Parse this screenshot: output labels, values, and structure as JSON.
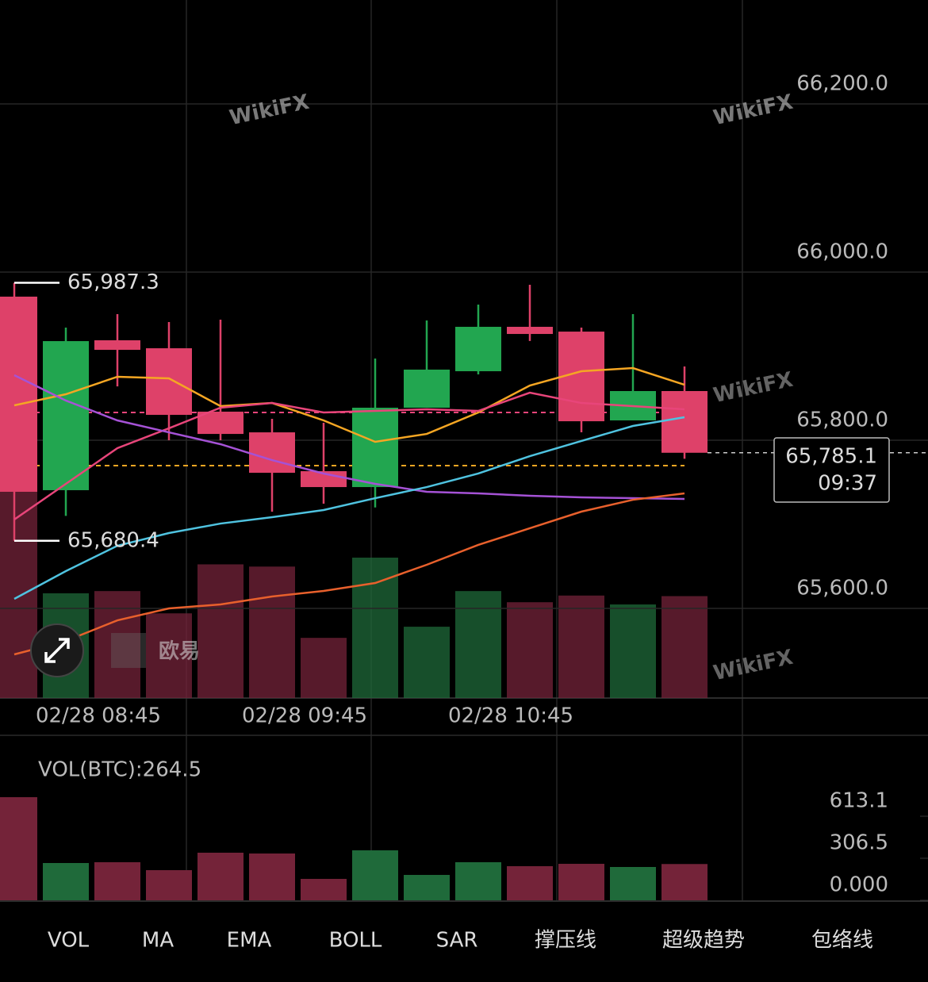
{
  "chart_data": [
    {
      "type": "candlestick",
      "categories": [
        null,
        null,
        "02/28 08:45",
        null,
        null,
        null,
        "02/28 09:45",
        null,
        null,
        null,
        "02/28 10:45",
        null,
        null,
        null
      ],
      "open": [
        65970.8,
        65740.6,
        65918.9,
        65909.4,
        65834.0,
        65809.4,
        65763.2,
        65744.3,
        65838.7,
        65882.1,
        65934.9,
        65929.2,
        65823.6,
        65858.5
      ],
      "high": [
        65987.3,
        65934.0,
        65950.0,
        65940.6,
        65943.4,
        65825.5,
        65820.8,
        65897.2,
        65942.5,
        65961.3,
        65984.9,
        65934.0,
        65950.0,
        65887.7
      ],
      "low": [
        65680.4,
        65710.0,
        65864.0,
        65800.0,
        65800.0,
        65715.0,
        65724.5,
        65720.0,
        65838.7,
        65878.3,
        65918.0,
        65809.4,
        65823.6,
        65778.0
      ],
      "close": [
        65738.7,
        65917.9,
        65907.5,
        65830.2,
        65807.5,
        65761.3,
        65744.3,
        65838.7,
        65884.0,
        65934.9,
        65926.4,
        65822.6,
        65858.5,
        65785.1
      ],
      "up_color": "#22a650",
      "down_color": "#de4169",
      "series": [
        {
          "color": "#f5a623",
          "values": [
            65841.5,
            65854.7,
            65875.5,
            65873.6,
            65840.6,
            65844.3,
            65823.6,
            65798.1,
            65807.5,
            65833.0,
            65865.1,
            65882.1,
            65885.8,
            65866.0
          ]
        },
        {
          "color": "#e8457a",
          "values": [
            65705.7,
            65748.1,
            65790.6,
            65814.2,
            65838.7,
            65844.3,
            65833.0,
            65834.9,
            65836.8,
            65834.9,
            65856.6,
            65844.3,
            65840.6,
            65836.8
          ]
        },
        {
          "color": "#a552d6",
          "values": [
            65877.4,
            65847.2,
            65823.6,
            65809.4,
            65795.3,
            65776.4,
            65760.4,
            65748.1,
            65738.7,
            65736.8,
            65734.0,
            65732.1,
            65731.1,
            65730.2
          ]
        },
        {
          "color": "#4fc3e0",
          "values": [
            65611.3,
            65644.3,
            65674.5,
            65689.6,
            65700.9,
            65708.5,
            65717.0,
            65731.1,
            65744.3,
            65760.4,
            65781.1,
            65799.1,
            65817.0,
            65827.4
          ]
        },
        {
          "color": "#e8602c",
          "values": [
            65545.3,
            65561.3,
            65585.8,
            65600.0,
            65604.7,
            65614.2,
            65620.8,
            65630.2,
            65651.9,
            65675.5,
            65695.3,
            65715.1,
            65729.2,
            65736.8
          ]
        }
      ],
      "reference_lines": [
        {
          "value": 65833.0,
          "color": "#e8457a"
        },
        {
          "value": 65769.8,
          "color": "#f5a623"
        }
      ],
      "annotations": [
        {
          "value": 65987.3,
          "label": "65,987.3"
        },
        {
          "value": 65680.4,
          "label": "65,680.4"
        }
      ],
      "price_tag": {
        "value": 65785.1,
        "label": "65,785.1",
        "time": "09:37"
      },
      "ylim": [
        65493.4,
        66323.6
      ],
      "yticks": [
        {
          "value": 66200,
          "label": "66,200.0"
        },
        {
          "value": 66000,
          "label": "66,000.0"
        },
        {
          "value": 65800,
          "label": "65,800.0"
        },
        {
          "value": 65600,
          "label": "65,600.0"
        }
      ],
      "grid": true
    },
    {
      "type": "bar",
      "title": "VOL(BTC):264.5",
      "values": [
        751.9,
        271.8,
        277.6,
        219.8,
        347.0,
        341.2,
        156.2,
        364.4,
        185.1,
        277.6,
        248.7,
        266.0,
        242.9,
        264.5
      ],
      "up_color": "#1f6a3a",
      "down_color": "#742339",
      "ylim": [
        0,
        1127.8
      ],
      "yticks": [
        {
          "value": 613.1,
          "label": "613.1"
        },
        {
          "value": 306.5,
          "label": "306.5"
        },
        {
          "value": 0,
          "label": "0.000"
        }
      ]
    }
  ],
  "tabs": [
    {
      "label": "VOL",
      "active": true
    },
    {
      "label": "MA",
      "active": true
    },
    {
      "label": "EMA",
      "active": false
    },
    {
      "label": "BOLL",
      "active": false
    },
    {
      "label": "SAR",
      "active": false
    },
    {
      "label": "撑压线",
      "active": true
    },
    {
      "label": "超级趋势",
      "active": false
    },
    {
      "label": "包络线",
      "active": false
    }
  ],
  "watermark": "WikiFX",
  "logo": "欧易"
}
